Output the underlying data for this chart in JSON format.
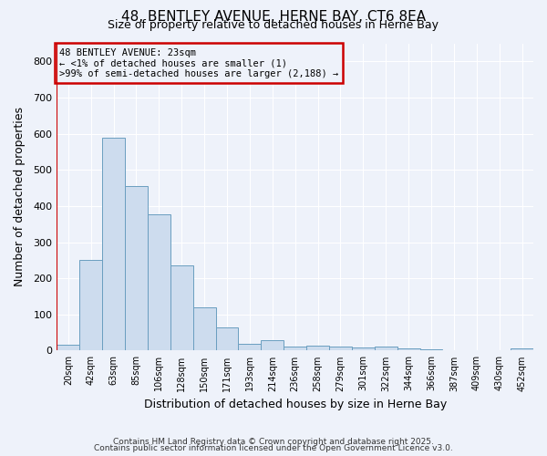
{
  "title": "48, BENTLEY AVENUE, HERNE BAY, CT6 8EA",
  "subtitle": "Size of property relative to detached houses in Herne Bay",
  "xlabel": "Distribution of detached houses by size in Herne Bay",
  "ylabel": "Number of detached properties",
  "bar_color": "#cddcee",
  "bar_edge_color": "#6a9ec0",
  "background_color": "#eef2fa",
  "grid_color": "#ffffff",
  "annotation_box_color": "#cc0000",
  "annotation_line1": "48 BENTLEY AVENUE: 23sqm",
  "annotation_line2": "← <1% of detached houses are smaller (1)",
  "annotation_line3": ">99% of semi-detached houses are larger (2,188) →",
  "marker_line_color": "#cc0000",
  "categories": [
    "20sqm",
    "42sqm",
    "63sqm",
    "85sqm",
    "106sqm",
    "128sqm",
    "150sqm",
    "171sqm",
    "193sqm",
    "214sqm",
    "236sqm",
    "258sqm",
    "279sqm",
    "301sqm",
    "322sqm",
    "344sqm",
    "366sqm",
    "387sqm",
    "409sqm",
    "430sqm",
    "452sqm"
  ],
  "values": [
    15,
    250,
    590,
    455,
    378,
    235,
    120,
    65,
    20,
    30,
    10,
    14,
    10,
    8,
    10,
    5,
    3,
    2,
    1,
    2,
    5
  ],
  "ylim": [
    0,
    850
  ],
  "yticks": [
    0,
    100,
    200,
    300,
    400,
    500,
    600,
    700,
    800
  ],
  "figsize": [
    6.0,
    5.0
  ],
  "dpi": 100,
  "footnote1": "Contains HM Land Registry data © Crown copyright and database right 2025.",
  "footnote2": "Contains public sector information licensed under the Open Government Licence v3.0."
}
